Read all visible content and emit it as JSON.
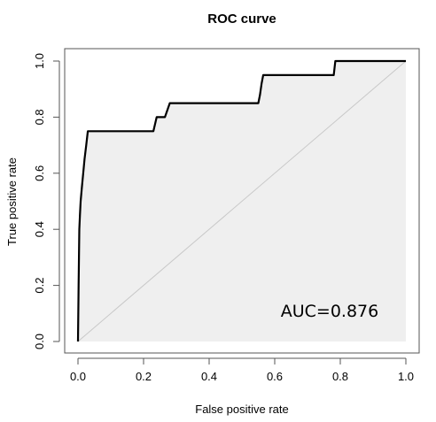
{
  "chart_data": {
    "type": "line",
    "title": "ROC curve",
    "xlabel": "False positive rate",
    "ylabel": "True positive rate",
    "xlim": [
      0,
      1
    ],
    "ylim": [
      0,
      1
    ],
    "xticks": [
      "0.0",
      "0.2",
      "0.4",
      "0.6",
      "0.8",
      "1.0"
    ],
    "yticks": [
      "0.0",
      "0.2",
      "0.4",
      "0.6",
      "0.8",
      "1.0"
    ],
    "annotation": "AUC=0.876",
    "grid": false,
    "reference_line": "diagonal",
    "fill_color": "#efefef",
    "line_color": "#000000",
    "diagonal_color": "#c8c8c8",
    "series": [
      {
        "x": [
          0,
          0.002,
          0.003,
          0.004,
          0.006,
          0.008,
          0.012,
          0.016,
          0.02,
          0.025,
          0.03,
          0.23,
          0.24,
          0.265,
          0.28,
          0.55,
          0.555,
          0.56,
          0.565,
          0.78,
          0.785,
          1.0
        ],
        "y": [
          0,
          0.2,
          0.3,
          0.4,
          0.45,
          0.5,
          0.55,
          0.6,
          0.65,
          0.7,
          0.75,
          0.75,
          0.8,
          0.8,
          0.85,
          0.85,
          0.88,
          0.92,
          0.95,
          0.95,
          1.0,
          1.0
        ]
      }
    ]
  }
}
